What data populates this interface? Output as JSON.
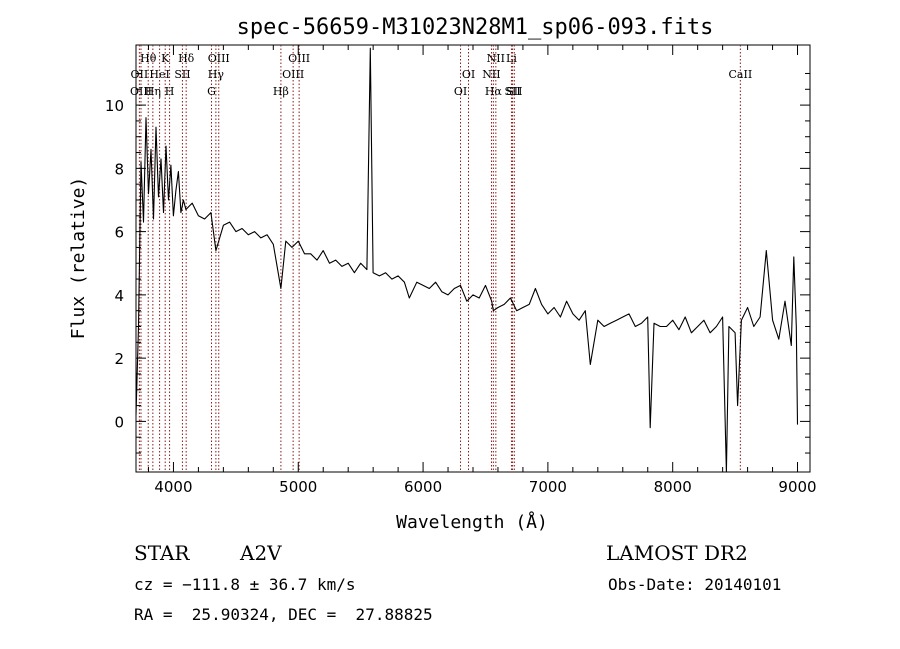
{
  "chart_data": {
    "type": "line",
    "title": "spec-56659-M31023N28M1_sp06-093.fits",
    "xlabel": "Wavelength (Å)",
    "ylabel": "Flux (relative)",
    "xlim": [
      3700,
      9100
    ],
    "ylim": [
      -1.6,
      11.9
    ],
    "x_ticks": [
      4000,
      5000,
      6000,
      7000,
      8000,
      9000
    ],
    "y_ticks": [
      0,
      2,
      4,
      6,
      8,
      10
    ],
    "grid": false,
    "line_color": "#000000",
    "marker_color": "#8b1a1a",
    "series": [
      {
        "x": [
          3700,
          3720,
          3740,
          3760,
          3780,
          3800,
          3820,
          3840,
          3860,
          3880,
          3900,
          3920,
          3940,
          3960,
          3980,
          4000,
          4020,
          4040,
          4060,
          4080,
          4100,
          4150,
          4200,
          4250,
          4300,
          4340,
          4400,
          4450,
          4500,
          4550,
          4600,
          4650,
          4700,
          4750,
          4800,
          4861,
          4900,
          4950,
          5000,
          5050,
          5100,
          5150,
          5200,
          5250,
          5300,
          5350,
          5400,
          5450,
          5500,
          5550,
          5577,
          5600,
          5650,
          5700,
          5750,
          5800,
          5850,
          5890,
          5950,
          6000,
          6050,
          6100,
          6150,
          6200,
          6250,
          6300,
          6350,
          6400,
          6450,
          6500,
          6550,
          6563,
          6600,
          6650,
          6700,
          6750,
          6800,
          6850,
          6900,
          6950,
          7000,
          7050,
          7100,
          7150,
          7200,
          7250,
          7300,
          7340,
          7400,
          7450,
          7500,
          7550,
          7600,
          7650,
          7700,
          7750,
          7800,
          7820,
          7850,
          7900,
          7950,
          8000,
          8050,
          8100,
          8150,
          8200,
          8250,
          8300,
          8350,
          8400,
          8430,
          8450,
          8500,
          8520,
          8550,
          8600,
          8650,
          8700,
          8750,
          8800,
          8850,
          8900,
          8950,
          8970,
          8990,
          9000
        ],
        "y": [
          0.2,
          3.0,
          8.2,
          6.3,
          9.6,
          7.2,
          8.6,
          6.4,
          9.3,
          7.1,
          8.3,
          6.6,
          8.7,
          7.0,
          8.1,
          6.5,
          7.3,
          7.9,
          6.6,
          7.0,
          6.7,
          6.9,
          6.5,
          6.4,
          6.6,
          5.4,
          6.2,
          6.3,
          6.0,
          6.1,
          5.9,
          6.0,
          5.8,
          5.9,
          5.6,
          4.2,
          5.7,
          5.5,
          5.7,
          5.3,
          5.3,
          5.1,
          5.4,
          5.0,
          5.1,
          4.9,
          5.0,
          4.7,
          5.0,
          4.8,
          11.8,
          4.7,
          4.6,
          4.7,
          4.5,
          4.6,
          4.4,
          3.9,
          4.4,
          4.3,
          4.2,
          4.4,
          4.1,
          4.0,
          4.2,
          4.3,
          3.8,
          4.0,
          3.9,
          4.3,
          3.8,
          3.5,
          3.6,
          3.7,
          3.9,
          3.5,
          3.6,
          3.7,
          4.2,
          3.7,
          3.4,
          3.6,
          3.3,
          3.8,
          3.4,
          3.2,
          3.5,
          1.8,
          3.2,
          3.0,
          3.1,
          3.2,
          3.3,
          3.4,
          3.0,
          3.1,
          3.3,
          -0.2,
          3.1,
          3.0,
          3.0,
          3.2,
          2.9,
          3.3,
          2.8,
          3.0,
          3.2,
          2.8,
          3.0,
          3.3,
          -1.6,
          3.0,
          2.8,
          0.5,
          3.2,
          3.6,
          3.0,
          3.3,
          5.4,
          3.2,
          2.6,
          3.8,
          2.4,
          5.2,
          3.0,
          -0.1
        ]
      }
    ],
    "line_markers": [
      {
        "label": "Hθ",
        "x": 3798,
        "row": 0
      },
      {
        "label": "OII",
        "x": 3727,
        "row": 1
      },
      {
        "label": "OIII",
        "x": 3740,
        "row": 2
      },
      {
        "label": "Hη",
        "x": 3835,
        "row": 2
      },
      {
        "label": "HeI",
        "x": 3889,
        "row": 1
      },
      {
        "label": "K",
        "x": 3934,
        "row": 0
      },
      {
        "label": "SII",
        "x": 4072,
        "row": 1
      },
      {
        "label": "H",
        "x": 3969,
        "row": 2
      },
      {
        "label": "Hδ",
        "x": 4102,
        "row": 0
      },
      {
        "label": "OIII",
        "x": 4363,
        "row": 0
      },
      {
        "label": "Hγ",
        "x": 4340,
        "row": 1
      },
      {
        "label": "G",
        "x": 4305,
        "row": 2
      },
      {
        "label": "OIII",
        "x": 5007,
        "row": 0
      },
      {
        "label": "OIII",
        "x": 4959,
        "row": 1
      },
      {
        "label": "Hβ",
        "x": 4861,
        "row": 2
      },
      {
        "label": "OI",
        "x": 6364,
        "row": 1
      },
      {
        "label": "OI",
        "x": 6300,
        "row": 2
      },
      {
        "label": "NII",
        "x": 6583,
        "row": 0
      },
      {
        "label": "NII",
        "x": 6548,
        "row": 1
      },
      {
        "label": "Hα",
        "x": 6563,
        "row": 2
      },
      {
        "label": "SII",
        "x": 6717,
        "row": 2
      },
      {
        "label": "Li",
        "x": 6708,
        "row": 0
      },
      {
        "label": "SII",
        "x": 6731,
        "row": 2
      },
      {
        "label": "CaII",
        "x": 8542,
        "row": 1
      }
    ],
    "marker_lines_x": [
      3727,
      3740,
      3798,
      3835,
      3889,
      3934,
      3969,
      4072,
      4102,
      4305,
      4340,
      4363,
      4861,
      4959,
      5007,
      6300,
      6364,
      6548,
      6563,
      6583,
      6708,
      6717,
      6731,
      8542
    ]
  },
  "info": {
    "class_label": "STAR",
    "subclass_label": "A2V",
    "survey": "LAMOST DR2",
    "cz": "cz = −111.8 ± 36.7 km/s",
    "obs_date": "Obs-Date: 20140101",
    "coords": "RA =  25.90324, DEC =  27.88825"
  }
}
